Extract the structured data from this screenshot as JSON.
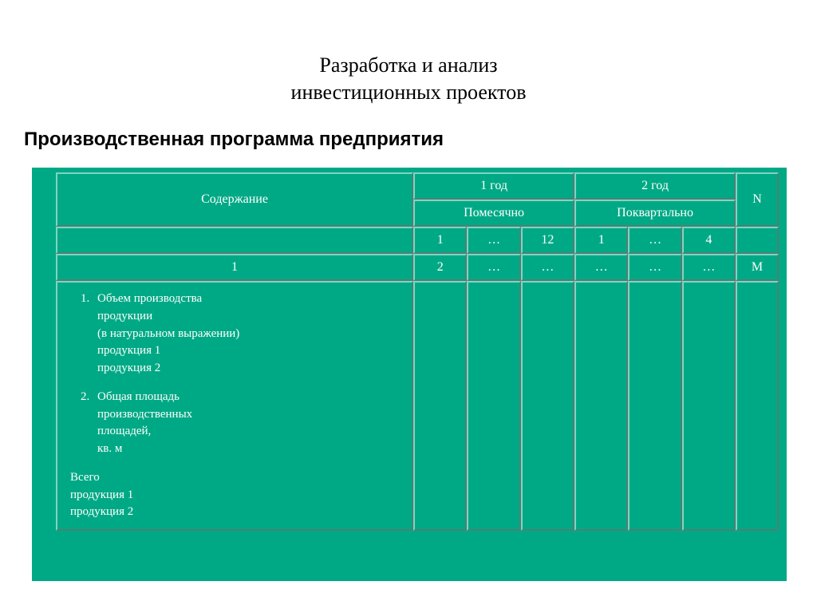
{
  "page": {
    "title_line1": "Разработка и анализ",
    "title_line2": "инвестиционных проектов",
    "subtitle": "Производственная программа предприятия"
  },
  "table": {
    "background_color": "#00a985",
    "text_color": "#ffffff",
    "header": {
      "content_label": "Содержание",
      "year1_label": "1 год",
      "year2_label": "2 год",
      "n_label": "N",
      "monthly_label": "Помесячно",
      "quarterly_label": "Поквартально",
      "month_start": "1",
      "month_mid": "…",
      "month_end": "12",
      "quarter_start": "1",
      "quarter_mid": "…",
      "quarter_end": "4",
      "n_blank": ""
    },
    "index_row": {
      "c1": "1",
      "c2": "2",
      "c3": "…",
      "c4": "…",
      "c5": "…",
      "c6": "…",
      "c7": "…",
      "c8": "М"
    },
    "body": {
      "item1_l1": "Объем производства",
      "item1_l2": "продукции",
      "item1_l3": "(в натуральном выражении)",
      "item1_l4": "продукция 1",
      "item1_l5": "продукция 2",
      "item2_l1": "Общая площадь",
      "item2_l2": "производственных",
      "item2_l3": "площадей,",
      "item2_l4": "кв. м",
      "totals_l1": "Всего",
      "totals_l2": "продукция 1",
      "totals_l3": "продукция 2"
    }
  }
}
